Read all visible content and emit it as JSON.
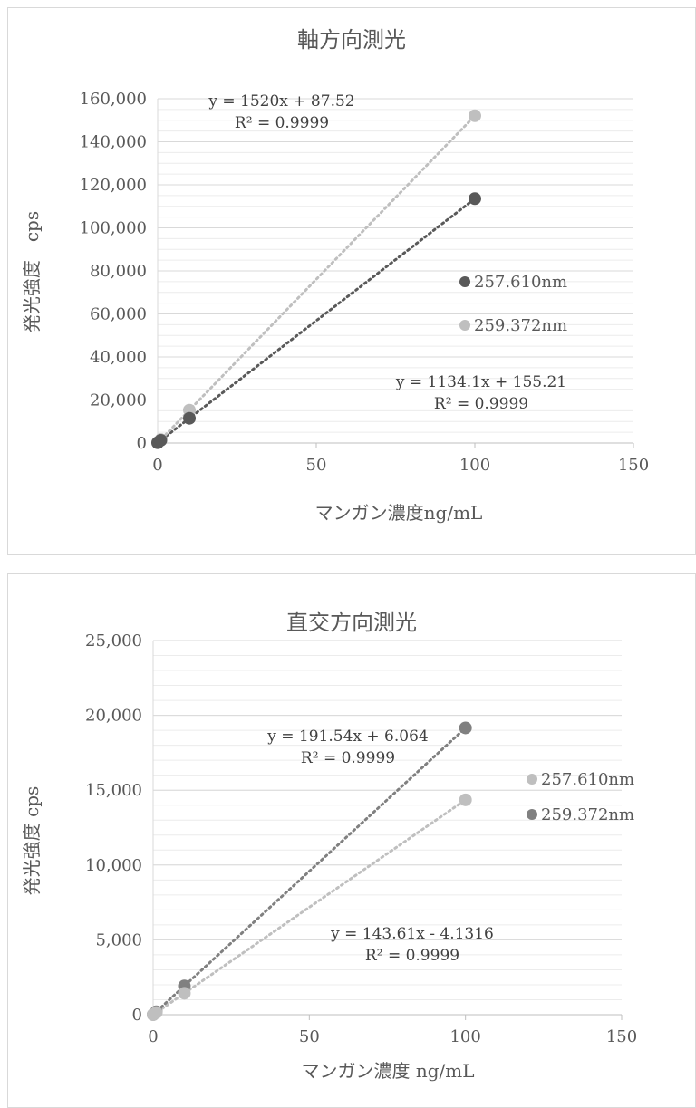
{
  "chart_data": [
    {
      "type": "scatter",
      "title": "軸方向測光",
      "xlabel": "マンガン濃度ng/mL",
      "ylabel": "発光強度　cps",
      "xlim": [
        0,
        150
      ],
      "ylim": [
        0,
        160000
      ],
      "x_ticks": [
        0,
        50,
        100,
        150
      ],
      "y_ticks": [
        0,
        20000,
        40000,
        60000,
        80000,
        100000,
        120000,
        140000,
        160000
      ],
      "x_tick_labels": [
        "0",
        "50",
        "100",
        "150"
      ],
      "y_tick_labels": [
        "0",
        "20,000",
        "40,000",
        "60,000",
        "80,000",
        "100,000",
        "120,000",
        "140,000",
        "160,000"
      ],
      "grid": "horizontal",
      "legend_position": "right",
      "series": [
        {
          "name": "257.610nm",
          "color": "#595959",
          "x": [
            0,
            1,
            10,
            100
          ],
          "y": [
            155,
            1289,
            11496,
            113565
          ],
          "trendline": {
            "slope": 1134.1,
            "intercept": 155.21,
            "equation": "y = 1134.1x + 155.21",
            "r2": "R² = 0.9999"
          }
        },
        {
          "name": "259.372nm",
          "color": "#bfbfbf",
          "x": [
            0,
            1,
            10,
            100
          ],
          "y": [
            88,
            1608,
            15288,
            152088
          ],
          "trendline": {
            "slope": 1520,
            "intercept": 87.52,
            "equation": "y = 1520x + 87.52",
            "r2": "R² = 0.9999"
          }
        }
      ]
    },
    {
      "type": "scatter",
      "title": "直交方向測光",
      "xlabel": "マンガン濃度 ng/mL",
      "ylabel": "発光強度 cps",
      "xlim": [
        0,
        150
      ],
      "ylim": [
        0,
        25000
      ],
      "x_ticks": [
        0,
        50,
        100,
        150
      ],
      "y_ticks": [
        0,
        5000,
        10000,
        15000,
        20000,
        25000
      ],
      "x_tick_labels": [
        "0",
        "50",
        "100",
        "150"
      ],
      "y_tick_labels": [
        "0",
        "5,000",
        "10,000",
        "15,000",
        "20,000",
        "25,000"
      ],
      "grid": "horizontal",
      "legend_position": "right",
      "series": [
        {
          "name": "257.610nm",
          "color": "#bfbfbf",
          "x": [
            0,
            1,
            10,
            100
          ],
          "y": [
            0,
            140,
            1432,
            14357
          ],
          "trendline": {
            "slope": 143.61,
            "intercept": -4.1316,
            "equation": "y = 143.61x - 4.1316",
            "r2": "R² = 0.9999"
          }
        },
        {
          "name": "259.372nm",
          "color": "#808080",
          "x": [
            0,
            1,
            10,
            100
          ],
          "y": [
            6,
            198,
            1921,
            19160
          ],
          "trendline": {
            "slope": 191.54,
            "intercept": 6.064,
            "equation": "y = 191.54x + 6.064",
            "r2": "R² = 0.9999"
          }
        }
      ]
    }
  ]
}
